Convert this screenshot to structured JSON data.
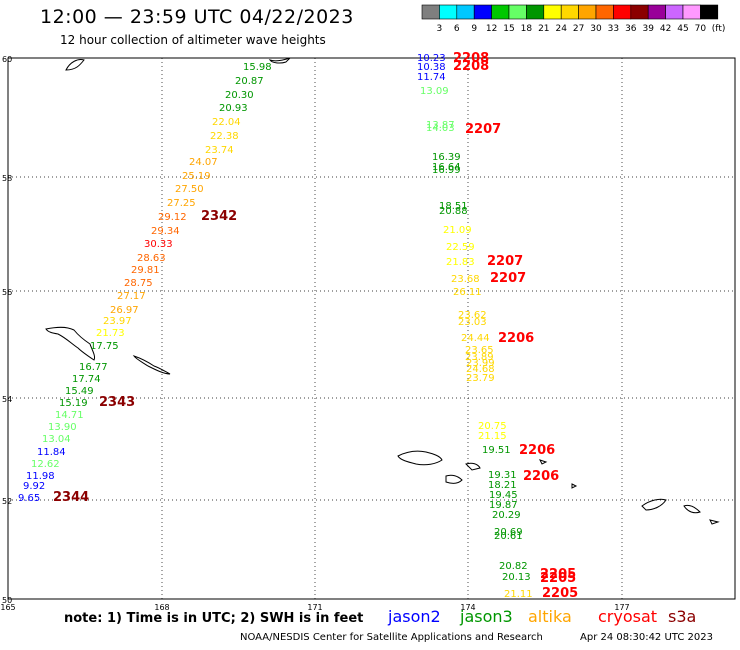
{
  "title": "12:00 — 23:59 UTC 04/22/2023",
  "subtitle": "12 hour collection of altimeter wave heights",
  "colorbar": {
    "unit": "(ft)",
    "labels": [
      "3",
      "6",
      "9",
      "12",
      "15",
      "18",
      "21",
      "24",
      "27",
      "30",
      "33",
      "36",
      "39",
      "42",
      "45",
      "70"
    ],
    "colors": [
      "#7f7f7f",
      "#00ffff",
      "#00c8ff",
      "#0000ff",
      "#00c800",
      "#66ff66",
      "#009600",
      "#ffff00",
      "#ffd700",
      "#ffa500",
      "#ff6600",
      "#ff0000",
      "#8b0000",
      "#990099",
      "#cc66ff",
      "#ff99ff",
      "#000000"
    ]
  },
  "axes": {
    "lat_ticks": [
      "60",
      "58",
      "56",
      "54",
      "52",
      "50"
    ],
    "lon_ticks": [
      "165",
      "168",
      "171",
      "174",
      "177"
    ]
  },
  "tracks": [
    {
      "pass": "2342",
      "color": "#8b0000",
      "points": [
        {
          "t": "15.98",
          "c": "#009600"
        },
        {
          "t": "20.87",
          "c": "#009600"
        },
        {
          "t": "20.30",
          "c": "#009600"
        },
        {
          "t": "20.93",
          "c": "#009600"
        },
        {
          "t": "22.04",
          "c": "#ffd700"
        },
        {
          "t": "22.38",
          "c": "#ffd700"
        },
        {
          "t": "23.74",
          "c": "#ffd700"
        },
        {
          "t": "24.07",
          "c": "#ffa500"
        },
        {
          "t": "25.19",
          "c": "#ffa500"
        },
        {
          "t": "27.50",
          "c": "#ffa500"
        },
        {
          "t": "27.25",
          "c": "#ffa500"
        },
        {
          "t": "29.12",
          "c": "#ff6600"
        },
        {
          "t": "29.34",
          "c": "#ff6600"
        },
        {
          "t": "30.33",
          "c": "#ff0000"
        },
        {
          "t": "28.63",
          "c": "#ff6600"
        },
        {
          "t": "29.81",
          "c": "#ff6600"
        },
        {
          "t": "28.75",
          "c": "#ff6600"
        },
        {
          "t": "27.17",
          "c": "#ffa500"
        },
        {
          "t": "26.97",
          "c": "#ffa500"
        },
        {
          "t": "23.97",
          "c": "#ffd700"
        },
        {
          "t": "21.73",
          "c": "#ffff00"
        },
        {
          "t": "17.75",
          "c": "#009600"
        }
      ]
    },
    {
      "pass": "2343",
      "color": "#8b0000",
      "points": [
        {
          "t": "16.77",
          "c": "#009600"
        },
        {
          "t": "17.74",
          "c": "#009600"
        },
        {
          "t": "15.49",
          "c": "#009600"
        },
        {
          "t": "15.19",
          "c": "#009600"
        }
      ]
    },
    {
      "pass": "2344",
      "color": "#8b0000",
      "points": [
        {
          "t": "14.71",
          "c": "#66ff66"
        },
        {
          "t": "13.90",
          "c": "#66ff66"
        },
        {
          "t": "13.04",
          "c": "#66ff66"
        },
        {
          "t": "11.84",
          "c": "#0000ff"
        },
        {
          "t": "12.62",
          "c": "#66ff66"
        },
        {
          "t": "11.98",
          "c": "#0000ff"
        },
        {
          "t": "9.92",
          "c": "#0000ff"
        },
        {
          "t": "9.65",
          "c": "#0000ff"
        }
      ]
    },
    {
      "pass": "2208",
      "color": "#ff0000",
      "points": [
        {
          "t": "10.23",
          "c": "#0000ff"
        },
        {
          "t": "10.38",
          "c": "#0000ff"
        },
        {
          "t": "11.74",
          "c": "#0000ff"
        },
        {
          "t": "13.09",
          "c": "#66ff66"
        }
      ]
    },
    {
      "pass": "2207",
      "color": "#ff0000",
      "points": [
        {
          "t": "13.87",
          "c": "#66ff66"
        },
        {
          "t": "14.03",
          "c": "#66ff66"
        },
        {
          "t": "16.39",
          "c": "#009600"
        },
        {
          "t": "16.64",
          "c": "#009600"
        },
        {
          "t": "16.99",
          "c": "#009600"
        },
        {
          "t": "18.51",
          "c": "#009600"
        },
        {
          "t": "20.88",
          "c": "#009600"
        },
        {
          "t": "21.09",
          "c": "#ffff00"
        },
        {
          "t": "22.59",
          "c": "#ffff00"
        },
        {
          "t": "21.83",
          "c": "#ffff00"
        },
        {
          "t": "23.68",
          "c": "#ffd700"
        },
        {
          "t": "26.11",
          "c": "#ffd700"
        }
      ]
    },
    {
      "pass": "2206",
      "color": "#ff0000",
      "points": [
        {
          "t": "23.62",
          "c": "#ffd700"
        },
        {
          "t": "23.03",
          "c": "#ffd700"
        },
        {
          "t": "24.44",
          "c": "#ffd700"
        },
        {
          "t": "23.65",
          "c": "#ffd700"
        },
        {
          "t": "23.89",
          "c": "#ffd700"
        },
        {
          "t": "23.99",
          "c": "#ffd700"
        },
        {
          "t": "24.68",
          "c": "#ffd700"
        },
        {
          "t": "23.79",
          "c": "#ffd700"
        },
        {
          "t": "20.75",
          "c": "#ffff00"
        },
        {
          "t": "21.15",
          "c": "#ffff00"
        },
        {
          "t": "19.51",
          "c": "#009600"
        },
        {
          "t": "19.31",
          "c": "#009600"
        },
        {
          "t": "18.21",
          "c": "#009600"
        },
        {
          "t": "19.45",
          "c": "#009600"
        },
        {
          "t": "19.87",
          "c": "#009600"
        },
        {
          "t": "20.29",
          "c": "#009600"
        },
        {
          "t": "20.69",
          "c": "#009600"
        },
        {
          "t": "20.61",
          "c": "#009600"
        }
      ]
    },
    {
      "pass": "2205",
      "color": "#ff0000",
      "points": [
        {
          "t": "20.82",
          "c": "#009600"
        },
        {
          "t": "20.13",
          "c": "#009600"
        },
        {
          "t": "21.11",
          "c": "#ffd700"
        }
      ]
    }
  ],
  "note": "note:  1) Time is in UTC; 2) SWH is in feet",
  "satellites": [
    {
      "name": "jason2",
      "color": "#0000ff"
    },
    {
      "name": "jason3",
      "color": "#009600"
    },
    {
      "name": "altika",
      "color": "#ffa500"
    },
    {
      "name": "cryosat",
      "color": "#ff0000"
    },
    {
      "name": "s3a",
      "color": "#8b0000"
    }
  ],
  "credit": "NOAA/NESDIS Center for Satellite Applications and Research",
  "timestamp": "Apr 24 08:30:42 UTC 2023"
}
